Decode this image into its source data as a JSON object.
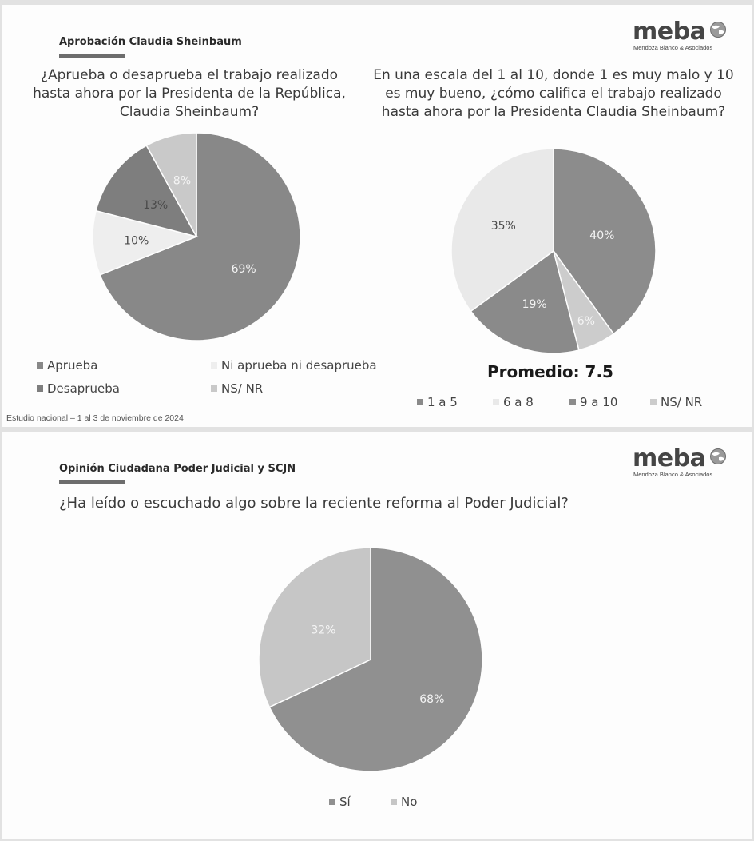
{
  "slides": [
    {
      "section_title": "Aprobación Claudia Sheinbaum",
      "logo": {
        "name": "meba",
        "subtitle": "Mendoza Blanco & Asociados"
      },
      "footnote": "Estudio nacional – 1 al 3 de noviembre de 2024",
      "promedio": "Promedio: 7.5"
    },
    {
      "section_title": "Opinión Ciudadana Poder Judicial y SCJN",
      "logo": {
        "name": "meba",
        "subtitle": "Mendoza Blanco & Asociados"
      }
    }
  ],
  "chart_data": [
    {
      "type": "pie",
      "title": "¿Aprueba o desaprueba el trabajo realizado hasta ahora por la Presidenta de la República, Claudia Sheinbaum?",
      "categories": [
        "Aprueba",
        "Ni aprueba ni desaprueba",
        "Desaprueba",
        "NS/ NR"
      ],
      "values": [
        69,
        10,
        13,
        8
      ],
      "value_labels": [
        "69%",
        "10%",
        "13%",
        "8%"
      ],
      "colors": [
        "#888888",
        "#eeeeee",
        "#7e7e7e",
        "#c9c9c9"
      ],
      "label_colors": [
        "light",
        "dark",
        "dark",
        "light"
      ],
      "legend_position": "bottom"
    },
    {
      "type": "pie",
      "title": "En una escala del 1 al 10, donde 1 es muy malo y 10 es muy bueno, ¿cómo califica el trabajo realizado hasta ahora por la Presidenta Claudia Sheinbaum?",
      "categories": [
        "9 a 10",
        "NS/ NR",
        "1 a 5",
        "6 a 8"
      ],
      "values": [
        40,
        6,
        19,
        35
      ],
      "value_labels": [
        "40%",
        "6%",
        "19%",
        "35%"
      ],
      "colors": [
        "#8c8c8c",
        "#cccccc",
        "#8a8a8a",
        "#e9e9e9"
      ],
      "label_colors": [
        "light",
        "light",
        "light",
        "dark"
      ],
      "legend": [
        {
          "label": "1 a 5",
          "color": "#8a8a8a"
        },
        {
          "label": "6 a 8",
          "color": "#e9e9e9"
        },
        {
          "label": "9 a 10",
          "color": "#8c8c8c"
        },
        {
          "label": "NS/ NR",
          "color": "#cccccc"
        }
      ],
      "legend_position": "bottom"
    },
    {
      "type": "pie",
      "title": "¿Ha leído o escuchado algo sobre la reciente reforma al Poder Judicial?",
      "categories": [
        "Sí",
        "No"
      ],
      "values": [
        68,
        32
      ],
      "value_labels": [
        "68%",
        "32%"
      ],
      "colors": [
        "#909090",
        "#c6c6c6"
      ],
      "label_colors": [
        "light",
        "light"
      ],
      "legend_position": "bottom"
    }
  ]
}
